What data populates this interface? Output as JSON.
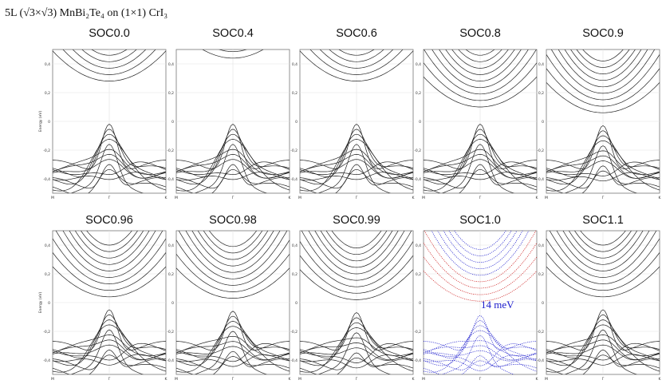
{
  "figure_title": "5L (√3×√3) MnBi₂Te₄ on (1×1) CrI₃",
  "gap_annotation": "14 meV",
  "ylabel": "Energy (eV)",
  "chart_data": [
    {
      "type": "line",
      "title": "SOC0.0",
      "x_ticks": [
        "M",
        "Γ",
        "K"
      ],
      "y_ticks": [
        "-0,4",
        "-0,2",
        "0",
        "0,2",
        "0,4"
      ],
      "ylim": [
        -0.5,
        0.5
      ],
      "cond_min": 0.28,
      "val_max": -0.02,
      "color": "#222222"
    },
    {
      "type": "line",
      "title": "SOC0.4",
      "x_ticks": [
        "M",
        "Γ",
        "K"
      ],
      "y_ticks": [
        "-0,4",
        "-0,2",
        "0",
        "0,2",
        "0,4"
      ],
      "ylim": [
        -0.5,
        0.5
      ],
      "cond_min": 0.44,
      "val_max": -0.02,
      "color": "#222222"
    },
    {
      "type": "line",
      "title": "SOC0.6",
      "x_ticks": [
        "M",
        "Γ",
        "K"
      ],
      "y_ticks": [
        "-0,4",
        "-0,2",
        "0",
        "0,2",
        "0,4"
      ],
      "ylim": [
        -0.5,
        0.5
      ],
      "cond_min": 0.28,
      "val_max": -0.02,
      "color": "#222222"
    },
    {
      "type": "line",
      "title": "SOC0.8",
      "x_ticks": [
        "M",
        "Γ",
        "K"
      ],
      "y_ticks": [
        "-0,4",
        "-0,2",
        "0",
        "0,2",
        "0,4"
      ],
      "ylim": [
        -0.5,
        0.5
      ],
      "cond_min": 0.1,
      "val_max": -0.02,
      "color": "#222222"
    },
    {
      "type": "line",
      "title": "SOC0.9",
      "x_ticks": [
        "M",
        "Γ",
        "K"
      ],
      "y_ticks": [
        "-0,4",
        "-0,2",
        "0",
        "0,2",
        "0,4"
      ],
      "ylim": [
        -0.5,
        0.5
      ],
      "cond_min": 0.06,
      "val_max": -0.03,
      "color": "#222222"
    },
    {
      "type": "line",
      "title": "SOC0.96",
      "x_ticks": [
        "M",
        "Γ",
        "K"
      ],
      "y_ticks": [
        "-0,4",
        "-0,2",
        "0",
        "0,2",
        "0,4"
      ],
      "ylim": [
        -0.5,
        0.5
      ],
      "cond_min": 0.04,
      "val_max": -0.05,
      "color": "#222222"
    },
    {
      "type": "line",
      "title": "SOC0.98",
      "x_ticks": [
        "M",
        "Γ",
        "K"
      ],
      "y_ticks": [
        "-0,4",
        "-0,2",
        "0",
        "0,2",
        "0,4"
      ],
      "ylim": [
        -0.5,
        0.5
      ],
      "cond_min": 0.03,
      "val_max": -0.06,
      "color": "#222222"
    },
    {
      "type": "line",
      "title": "SOC0.99",
      "x_ticks": [
        "M",
        "Γ",
        "K"
      ],
      "y_ticks": [
        "-0,4",
        "-0,2",
        "0",
        "0,2",
        "0,4"
      ],
      "ylim": [
        -0.5,
        0.5
      ],
      "cond_min": 0.02,
      "val_max": -0.07,
      "color": "#222222"
    },
    {
      "type": "line",
      "title": "SOC1.0",
      "x_ticks": [
        "M",
        "Γ",
        "K"
      ],
      "y_ticks": [
        "-0,4",
        "-0,2",
        "0",
        "0,2",
        "0,4"
      ],
      "ylim": [
        -0.5,
        0.5
      ],
      "cond_min": 0.01,
      "val_max": -0.09,
      "color": "#1a1acc",
      "cond_color": "#cc1a1a",
      "dotted": true
    },
    {
      "type": "line",
      "title": "SOC1.1",
      "x_ticks": [
        "M",
        "Γ",
        "K"
      ],
      "y_ticks": [
        "-0,4",
        "-0,2",
        "0",
        "0,2",
        "0,4"
      ],
      "ylim": [
        -0.5,
        0.5
      ],
      "cond_min": 0.04,
      "val_max": -0.05,
      "color": "#222222"
    }
  ]
}
